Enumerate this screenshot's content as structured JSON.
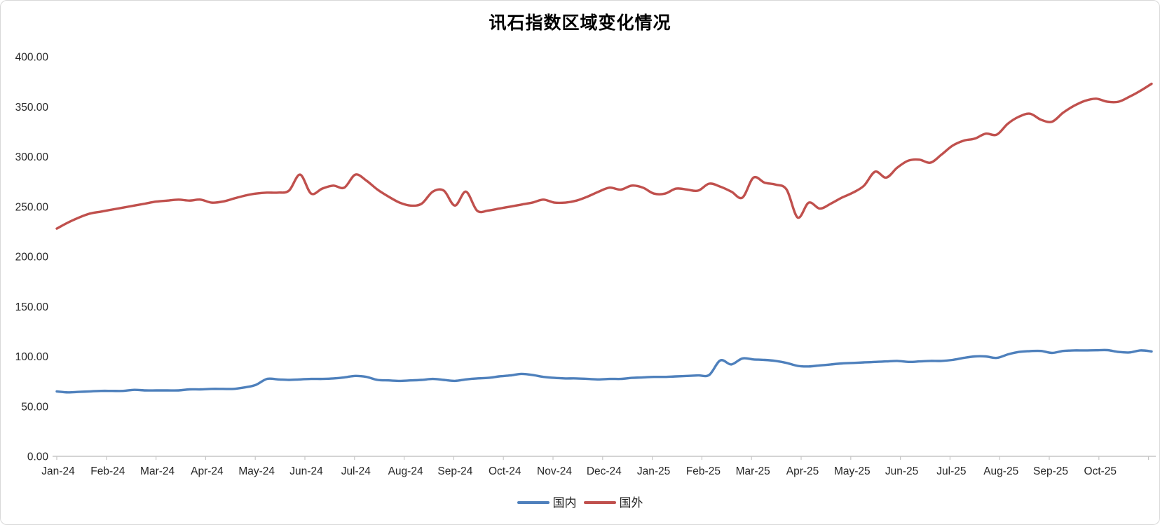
{
  "title": "讯石指数区域变化情况",
  "colors": {
    "domestic_line": "#4E80BC",
    "foreign_line": "#C0504D",
    "axis_line": "#c6c6c6",
    "label_text": "#262626",
    "frame_border": "#d8d8d8"
  },
  "legend": {
    "items": [
      {
        "label": "国内",
        "color": "#4E80BC"
      },
      {
        "label": "国外",
        "color": "#C0504D"
      }
    ],
    "position": "bottom"
  },
  "chart_data": {
    "type": "line",
    "title": "讯石指数区域变化情况",
    "xlabel": "",
    "ylabel": "",
    "x_unit": "weekly points, Jan-2024 through Nov-2025",
    "categories": [
      "Jan-24",
      "Feb-24",
      "Mar-24",
      "Apr-24",
      "May-24",
      "Jun-24",
      "Jul-24",
      "Aug-24",
      "Sep-24",
      "Oct-24",
      "Nov-24",
      "Dec-24",
      "Jan-25",
      "Feb-25",
      "Mar-25",
      "Apr-25",
      "May-25",
      "Jun-25",
      "Jul-25",
      "Aug-25",
      "Sep-25",
      "Oct-25"
    ],
    "ylim": [
      0,
      400
    ],
    "ystep": 50,
    "y_tick_decimals": 2,
    "grid": false,
    "smooth": true,
    "legend_position": "bottom",
    "series": [
      {
        "name": "国内",
        "color": "#4E80BC",
        "values": [
          65,
          64,
          64.5,
          65,
          65.5,
          65.5,
          65.5,
          66.5,
          66,
          66,
          66,
          66,
          67,
          67,
          67.5,
          67.5,
          67.5,
          69,
          71.5,
          77.5,
          77,
          76.5,
          77,
          77.5,
          77.5,
          78,
          79,
          80.5,
          79.5,
          76.5,
          76,
          75.5,
          76,
          76.5,
          77.5,
          76.5,
          75.5,
          77,
          78,
          78.5,
          80,
          81,
          82.5,
          81.5,
          79.5,
          78.5,
          78,
          78,
          77.5,
          77,
          77.5,
          77.5,
          78.5,
          79,
          79.5,
          79.5,
          80,
          80.5,
          81,
          81.5,
          96,
          92,
          98,
          97,
          96.5,
          95.5,
          93.5,
          90.5,
          90,
          91,
          92,
          93,
          93.5,
          94,
          94.5,
          95,
          95.5,
          94.5,
          95,
          95.5,
          95.5,
          96.5,
          98.5,
          100,
          100,
          98.5,
          102,
          104.5,
          105.3,
          105.5,
          103.5,
          105.5,
          106,
          106,
          106.2,
          106.3,
          104.5,
          104,
          106,
          105
        ]
      },
      {
        "name": "国外",
        "color": "#C0504D",
        "values": [
          228,
          234,
          239,
          243,
          245,
          247,
          249,
          251,
          253,
          255,
          256,
          257,
          256,
          257,
          254,
          255,
          258,
          261,
          263,
          264,
          264,
          266,
          282,
          263,
          268,
          271,
          269,
          282,
          276,
          267,
          260,
          254,
          251,
          253,
          265,
          266,
          251,
          265,
          246,
          246,
          248,
          250,
          252,
          254,
          257,
          254,
          254,
          256,
          260,
          265,
          269,
          267,
          271,
          269,
          263,
          263,
          268,
          267,
          266,
          273,
          270,
          265,
          259,
          279,
          274,
          272,
          267,
          239,
          254,
          248,
          253,
          259,
          264,
          271,
          285,
          279,
          289,
          296,
          297,
          294,
          302,
          311,
          316,
          318,
          323,
          322,
          333,
          340,
          343,
          337,
          335,
          344,
          351,
          356,
          358,
          355,
          355,
          360,
          366,
          373
        ]
      }
    ]
  }
}
